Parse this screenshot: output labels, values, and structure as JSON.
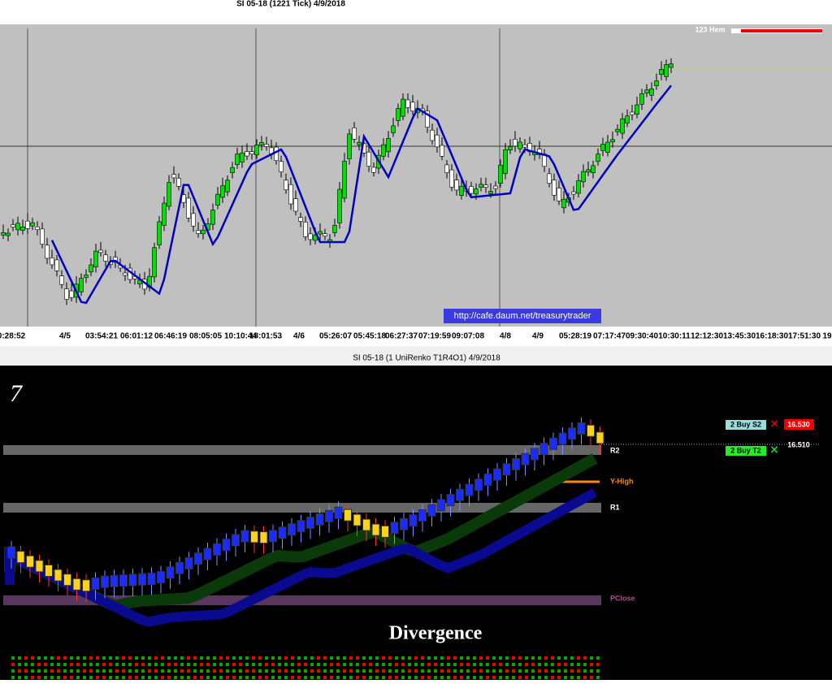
{
  "top_window": {
    "title": "SI 05-18 (1221 Tick)  4/9/2018",
    "indicator": "123 Hem",
    "url": "http://cafe.daum.net/treasurytrader",
    "time_labels": [
      "0:28:52",
      "4/5",
      "03:54:21",
      "06:01:12",
      "06:46:19",
      "08:05:05",
      "10:10:44",
      "18:01:53",
      "4/6",
      "05:26:07",
      "05:45:18",
      "06:27:37",
      "07:19:59",
      "09:07:08",
      "4/8",
      "4/9",
      "05:28:19",
      "07:17:47",
      "09:30:40",
      "10:30:11",
      "12:12:30",
      "13:45:30",
      "16:18:30",
      "17:51:30",
      "19"
    ]
  },
  "bottom_window": {
    "title": "SI 05-18 (1 UniRenko T1R4O1)  4/9/2018",
    "panel_number": "7",
    "study": "Divergence",
    "levels": [
      "R2",
      "Y-High",
      "R1",
      "PClose"
    ],
    "orders": [
      {
        "label": "2  Buy S2",
        "price": "16.530"
      },
      {
        "label": "2  Buy T2",
        "price": "16.510"
      }
    ]
  }
}
